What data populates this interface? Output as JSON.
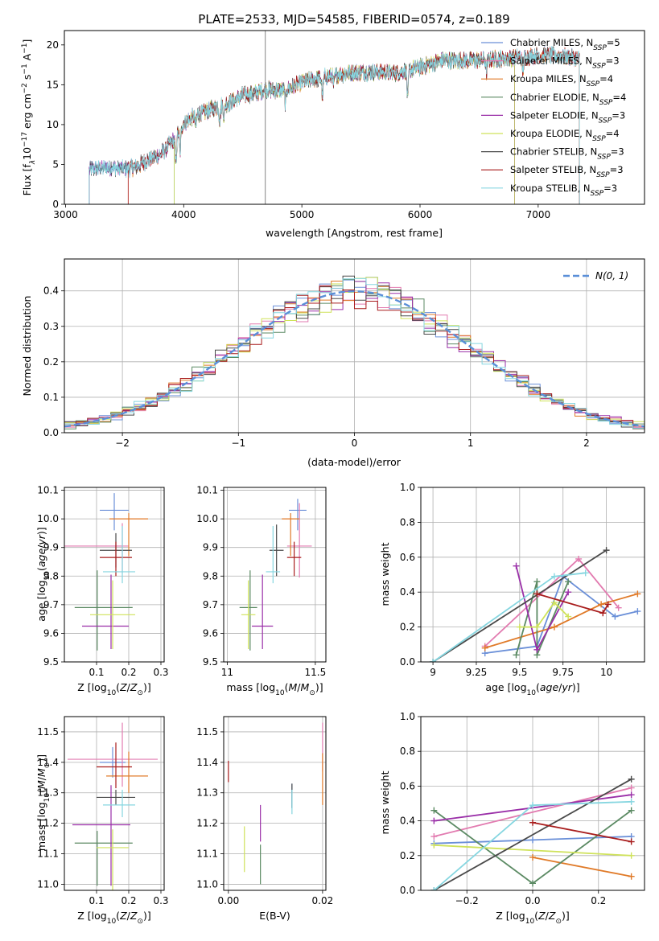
{
  "figure_title": "PLATE=2533, MJD=54585, FIBERID=0574, z=0.189",
  "colors": {
    "Chabrier MILES": "#6a8fd8",
    "Salpeter MILES": "#e27bb0",
    "Kroupa MILES": "#e07a28",
    "Chabrier ELODIE": "#5b8a63",
    "Salpeter ELODIE": "#9a2fa8",
    "Kroupa ELODIE": "#cfe25a",
    "Chabrier STELIB": "#4a4a4a",
    "Salpeter STELIB": "#a81c1c",
    "Kroupa STELIB": "#86d6e0",
    "normal": "#5a8fd8",
    "grid": "#b0b0b0"
  },
  "chart_data": [
    {
      "id": "spectrum",
      "type": "line",
      "title": "",
      "xlabel": "wavelength [Angstrom, rest frame]",
      "ylabel_parts": [
        "Flux [f",
        "λ",
        "10",
        "−17",
        " erg cm",
        "−2",
        " s",
        "−1",
        " A",
        "−1",
        "]"
      ],
      "xlim": [
        2990,
        7900
      ],
      "ylim": [
        0,
        21.8
      ],
      "xticks": [
        3000,
        4000,
        5000,
        6000,
        7000
      ],
      "yticks": [
        0,
        5,
        10,
        15,
        20
      ],
      "grid": false,
      "legend_placement": "right",
      "series": [
        {
          "name": "Chabrier MILES",
          "nssp": "5"
        },
        {
          "name": "Salpeter MILES",
          "nssp": "3"
        },
        {
          "name": "Kroupa MILES",
          "nssp": "4"
        },
        {
          "name": "Chabrier ELODIE",
          "nssp": "4"
        },
        {
          "name": "Salpeter ELODIE",
          "nssp": "3"
        },
        {
          "name": "Kroupa ELODIE",
          "nssp": "4"
        },
        {
          "name": "Chabrier STELIB",
          "nssp": "3"
        },
        {
          "name": "Salpeter STELIB",
          "nssp": "3"
        },
        {
          "name": "Kroupa STELIB",
          "nssp": "3"
        }
      ],
      "continuum": {
        "x": [
          3200,
          3300,
          3400,
          3500,
          3600,
          3700,
          3800,
          3900,
          4000,
          4100,
          4200,
          4300,
          4400,
          4500,
          4600,
          4700,
          4800,
          4900,
          5000,
          5200,
          5400,
          5600,
          5800,
          6000,
          6200,
          6400,
          6600,
          6800,
          7000,
          7200,
          7400
        ],
        "y": [
          4.4,
          4.5,
          4.7,
          4.4,
          4.7,
          5.6,
          6.2,
          7.8,
          10.2,
          11.2,
          11.7,
          12.4,
          12.8,
          13.7,
          13.9,
          14.4,
          14.3,
          14.6,
          15.3,
          16.0,
          16.5,
          16.6,
          16.5,
          17.2,
          18.1,
          18.0,
          18.2,
          18.4,
          18.7,
          18.6,
          18.1
        ]
      },
      "fit_start": [
        3200,
        3530,
        3530,
        3920,
        3200,
        3920,
        3200,
        3530,
        3200
      ],
      "fit_end": [
        7350,
        7350,
        7350,
        6800,
        6800,
        6800,
        7350,
        7350,
        7350
      ],
      "vertical_line_x": 4690
    },
    {
      "id": "residuals",
      "type": "histogram",
      "title": "",
      "xlabel": "(data-model)/error",
      "ylabel": "Normed distribution",
      "xlim": [
        -2.5,
        2.5
      ],
      "ylim": [
        0,
        0.49
      ],
      "xticks": [
        -2,
        -1,
        0,
        1,
        2
      ],
      "xtick_labels": [
        "−2",
        "−1",
        "0",
        "1",
        "2"
      ],
      "yticks": [
        0.0,
        0.1,
        0.2,
        0.3,
        0.4
      ],
      "grid": true,
      "legend_placement": "top-right",
      "legend_label": "N(0, 1)",
      "bin_width": 0.1
    },
    {
      "id": "age-vs-z",
      "type": "scatter",
      "title": "",
      "xlabel": "Z [log10(Z/Z⊙)]",
      "ylabel": "age [log10(age/yr)]",
      "xlim": [
        0.0,
        0.31
      ],
      "ylim": [
        9.5,
        10.11
      ],
      "xticks": [
        0.1,
        0.2,
        0.3
      ],
      "yticks": [
        9.5,
        9.6,
        9.7,
        9.8,
        9.9,
        10.0,
        10.1
      ],
      "grid": true,
      "points": [
        {
          "model": "Chabrier MILES",
          "x": 0.155,
          "xerr": [
            0.045,
            0.045
          ],
          "y": 10.03,
          "yerr": [
            0.07,
            0.06
          ]
        },
        {
          "model": "Salpeter MILES",
          "x": 0.18,
          "xerr": [
            0.2,
            0.02
          ],
          "y": 9.905,
          "yerr": [
            0.095,
            0.08
          ]
        },
        {
          "model": "Kroupa MILES",
          "x": 0.2,
          "xerr": [
            0.06,
            0.06
          ],
          "y": 10.0,
          "yerr": [
            0.13,
            0.02
          ]
        },
        {
          "model": "Chabrier ELODIE",
          "x": 0.102,
          "xerr": [
            0.07,
            0.11
          ],
          "y": 9.69,
          "yerr": [
            0.15,
            0.13
          ]
        },
        {
          "model": "Salpeter ELODIE",
          "x": 0.145,
          "xerr": [
            0.09,
            0.055
          ],
          "y": 9.625,
          "yerr": [
            0.08,
            0.18
          ]
        },
        {
          "model": "Kroupa ELODIE",
          "x": 0.15,
          "xerr": [
            0.07,
            0.07
          ],
          "y": 9.665,
          "yerr": [
            0.12,
            0.12
          ]
        },
        {
          "model": "Chabrier STELIB",
          "x": 0.16,
          "xerr": [
            0.05,
            0.05
          ],
          "y": 9.89,
          "yerr": [
            0.06,
            0.06
          ]
        },
        {
          "model": "Salpeter STELIB",
          "x": 0.16,
          "xerr": [
            0.05,
            0.05
          ],
          "y": 9.865,
          "yerr": [
            0.065,
            0.055
          ]
        },
        {
          "model": "Kroupa STELIB",
          "x": 0.18,
          "xerr": [
            0.06,
            0.04
          ],
          "y": 9.815,
          "yerr": [
            0.04,
            0.16
          ]
        }
      ]
    },
    {
      "id": "age-vs-mass",
      "type": "scatter",
      "title": "",
      "xlabel": "mass [log10(M/M⊙)]",
      "ylabel": "",
      "xlim": [
        10.98,
        11.56
      ],
      "ylim": [
        9.5,
        10.11
      ],
      "xticks": [
        11.0,
        11.5
      ],
      "yticks": [
        9.5,
        9.6,
        9.7,
        9.8,
        9.9,
        10.0,
        10.1
      ],
      "grid": true,
      "points": [
        {
          "model": "Chabrier MILES",
          "x": 11.4,
          "xerr": [
            0.05,
            0.05
          ],
          "y": 10.03,
          "yerr": [
            0.07,
            0.04
          ]
        },
        {
          "model": "Salpeter MILES",
          "x": 11.41,
          "xerr": [
            0.07,
            0.07
          ],
          "y": 9.905,
          "yerr": [
            0.11,
            0.15
          ]
        },
        {
          "model": "Kroupa MILES",
          "x": 11.36,
          "xerr": [
            0.05,
            0.05
          ],
          "y": 10.0,
          "yerr": [
            0.13,
            0.02
          ]
        },
        {
          "model": "Chabrier ELODIE",
          "x": 11.13,
          "xerr": [
            0.06,
            0.04
          ],
          "y": 9.69,
          "yerr": [
            0.15,
            0.13
          ]
        },
        {
          "model": "Salpeter ELODIE",
          "x": 11.2,
          "xerr": [
            0.06,
            0.06
          ],
          "y": 9.625,
          "yerr": [
            0.08,
            0.18
          ]
        },
        {
          "model": "Kroupa ELODIE",
          "x": 11.12,
          "xerr": [
            0.04,
            0.04
          ],
          "y": 9.665,
          "yerr": [
            0.12,
            0.12
          ]
        },
        {
          "model": "Chabrier STELIB",
          "x": 11.28,
          "xerr": [
            0.04,
            0.04
          ],
          "y": 9.89,
          "yerr": [
            0.09,
            0.09
          ]
        },
        {
          "model": "Salpeter STELIB",
          "x": 11.38,
          "xerr": [
            0.04,
            0.04
          ],
          "y": 9.865,
          "yerr": [
            0.065,
            0.055
          ]
        },
        {
          "model": "Kroupa STELIB",
          "x": 11.26,
          "xerr": [
            0.04,
            0.04
          ],
          "y": 9.815,
          "yerr": [
            0.04,
            0.16
          ]
        }
      ]
    },
    {
      "id": "weight-vs-age",
      "type": "line",
      "title": "",
      "xlabel": "age [log10(age/yr)]",
      "ylabel": "mass weight",
      "xlim": [
        8.93,
        10.22
      ],
      "ylim": [
        0,
        1.0
      ],
      "xticks": [
        9.0,
        9.25,
        9.5,
        9.75,
        10.0
      ],
      "yticks": [
        0.0,
        0.2,
        0.4,
        0.6,
        0.8,
        1.0
      ],
      "grid": true,
      "series": [
        {
          "model": "Chabrier MILES",
          "x": [
            9.3,
            9.6,
            9.75,
            10.05,
            10.18
          ],
          "y": [
            0.05,
            0.09,
            0.49,
            0.26,
            0.29
          ]
        },
        {
          "model": "Salpeter MILES",
          "x": [
            9.3,
            9.84,
            10.07
          ],
          "y": [
            0.09,
            0.59,
            0.31
          ]
        },
        {
          "model": "Kroupa MILES",
          "x": [
            9.3,
            9.7,
            9.97,
            10.18
          ],
          "y": [
            0.08,
            0.2,
            0.33,
            0.39
          ]
        },
        {
          "model": "Chabrier ELODIE",
          "x": [
            9.48,
            9.6,
            9.6,
            9.78
          ],
          "y": [
            0.04,
            0.46,
            0.04,
            0.46
          ]
        },
        {
          "model": "Salpeter ELODIE",
          "x": [
            9.48,
            9.6,
            9.78
          ],
          "y": [
            0.55,
            0.07,
            0.4
          ]
        },
        {
          "model": "Kroupa ELODIE",
          "x": [
            9.5,
            9.6,
            9.7,
            9.78
          ],
          "y": [
            0.2,
            0.2,
            0.34,
            0.26
          ]
        },
        {
          "model": "Chabrier STELIB",
          "x": [
            9.0,
            10.0
          ],
          "y": [
            0.0,
            0.64
          ]
        },
        {
          "model": "Salpeter STELIB",
          "x": [
            9.6,
            9.98,
            10.01
          ],
          "y": [
            0.39,
            0.28,
            0.33
          ]
        },
        {
          "model": "Kroupa STELIB",
          "x": [
            9.0,
            9.7,
            9.88
          ],
          "y": [
            0.0,
            0.49,
            0.51
          ]
        }
      ]
    },
    {
      "id": "mass-vs-z",
      "type": "scatter",
      "title": "",
      "xlabel": "Z [log10(Z/Z⊙)]",
      "ylabel": "mass [log10(M/M⊙)]",
      "xlim": [
        0.0,
        0.31
      ],
      "ylim": [
        10.98,
        11.55
      ],
      "xticks": [
        0.1,
        0.2,
        0.3
      ],
      "yticks": [
        11.0,
        11.1,
        11.2,
        11.3,
        11.4,
        11.5
      ],
      "grid": true,
      "points": [
        {
          "model": "Chabrier MILES",
          "x": 0.15,
          "xerr": [
            0.04,
            0.04
          ],
          "y": 11.4,
          "yerr": [
            0.05,
            0.05
          ]
        },
        {
          "model": "Salpeter MILES",
          "x": 0.18,
          "xerr": [
            0.17,
            0.11
          ],
          "y": 11.41,
          "yerr": [
            0.09,
            0.12
          ]
        },
        {
          "model": "Kroupa MILES",
          "x": 0.2,
          "xerr": [
            0.07,
            0.06
          ],
          "y": 11.355,
          "yerr": [
            0.055,
            0.08
          ]
        },
        {
          "model": "Chabrier ELODIE",
          "x": 0.102,
          "xerr": [
            0.07,
            0.11
          ],
          "y": 11.135,
          "yerr": [
            0.14,
            0.04
          ]
        },
        {
          "model": "Salpeter ELODIE",
          "x": 0.145,
          "xerr": [
            0.12,
            0.06
          ],
          "y": 11.195,
          "yerr": [
            0.2,
            0.13
          ]
        },
        {
          "model": "Kroupa ELODIE",
          "x": 0.15,
          "xerr": [
            0.05,
            0.05
          ],
          "y": 11.12,
          "yerr": [
            0.14,
            0.06
          ]
        },
        {
          "model": "Chabrier STELIB",
          "x": 0.16,
          "xerr": [
            0.06,
            0.06
          ],
          "y": 11.285,
          "yerr": [
            0.025,
            0.025
          ]
        },
        {
          "model": "Salpeter STELIB",
          "x": 0.16,
          "xerr": [
            0.06,
            0.05
          ],
          "y": 11.385,
          "yerr": [
            0.07,
            0.08
          ]
        },
        {
          "model": "Kroupa STELIB",
          "x": 0.18,
          "xerr": [
            0.06,
            0.04
          ],
          "y": 11.26,
          "yerr": [
            0.04,
            0.05
          ]
        }
      ]
    },
    {
      "id": "mass-vs-ebv",
      "type": "scatter",
      "title": "",
      "xlabel": "E(B-V)",
      "ylabel": "",
      "xlim": [
        -0.001,
        0.0207
      ],
      "ylim": [
        10.98,
        11.55
      ],
      "xticks": [
        0.0,
        0.02
      ],
      "xtick_labels": [
        "0.00",
        "0.02"
      ],
      "yticks": [
        11.0,
        11.1,
        11.2,
        11.3,
        11.4,
        11.5
      ],
      "grid": true,
      "points": [
        {
          "model": "Chabrier MILES",
          "x": 0.0135,
          "xerr": [
            0,
            0
          ],
          "y": 11.29,
          "yerr": [
            0.04,
            0.04
          ]
        },
        {
          "model": "Salpeter MILES",
          "x": 0.02,
          "xerr": [
            0,
            0
          ],
          "y": 11.45,
          "yerr": [
            0.08,
            0.08
          ]
        },
        {
          "model": "Kroupa MILES",
          "x": 0.02,
          "xerr": [
            0,
            0
          ],
          "y": 11.36,
          "yerr": [
            0.1,
            0.07
          ]
        },
        {
          "model": "Chabrier ELODIE",
          "x": 0.0068,
          "xerr": [
            0,
            0
          ],
          "y": 11.07,
          "yerr": [
            0.07,
            0.06
          ]
        },
        {
          "model": "Salpeter ELODIE",
          "x": 0.0068,
          "xerr": [
            0,
            0
          ],
          "y": 11.2,
          "yerr": [
            0.06,
            0.06
          ]
        },
        {
          "model": "Kroupa ELODIE",
          "x": 0.0034,
          "xerr": [
            0,
            0
          ],
          "y": 11.12,
          "yerr": [
            0.08,
            0.07
          ]
        },
        {
          "model": "Chabrier STELIB",
          "x": 0.0135,
          "xerr": [
            0,
            0
          ],
          "y": 11.29,
          "yerr": [
            0.04,
            0.04
          ]
        },
        {
          "model": "Salpeter STELIB",
          "x": 0.0,
          "xerr": [
            0,
            0
          ],
          "y": 11.37,
          "yerr": [
            0.035,
            0.035
          ]
        },
        {
          "model": "Kroupa STELIB",
          "x": 0.0135,
          "xerr": [
            0,
            0
          ],
          "y": 11.27,
          "yerr": [
            0.04,
            0.04
          ]
        }
      ]
    },
    {
      "id": "weight-vs-z",
      "type": "line",
      "title": "",
      "xlabel": "Z [log10(Z/Z⊙)]",
      "ylabel": "mass weight",
      "xlim": [
        -0.34,
        0.34
      ],
      "ylim": [
        0,
        1.0
      ],
      "xticks": [
        -0.2,
        0.0,
        0.2
      ],
      "xtick_labels": [
        "−0.2",
        "0.0",
        "0.2"
      ],
      "yticks": [
        0.0,
        0.2,
        0.4,
        0.6,
        0.8,
        1.0
      ],
      "grid": true,
      "series": [
        {
          "model": "Chabrier MILES",
          "x": [
            -0.3,
            0.0,
            0.3
          ],
          "y": [
            0.27,
            0.29,
            0.31
          ]
        },
        {
          "model": "Salpeter MILES",
          "x": [
            -0.3,
            0.3
          ],
          "y": [
            0.31,
            0.59
          ]
        },
        {
          "model": "Kroupa MILES",
          "x": [
            0.0,
            0.3
          ],
          "y": [
            0.19,
            0.08
          ]
        },
        {
          "model": "Chabrier ELODIE",
          "x": [
            -0.3,
            0.0,
            0.3
          ],
          "y": [
            0.46,
            0.04,
            0.46
          ]
        },
        {
          "model": "Salpeter ELODIE",
          "x": [
            -0.3,
            0.3
          ],
          "y": [
            0.4,
            0.55
          ]
        },
        {
          "model": "Kroupa ELODIE",
          "x": [
            -0.3,
            0.3
          ],
          "y": [
            0.26,
            0.2
          ]
        },
        {
          "model": "Chabrier STELIB",
          "x": [
            -0.3,
            0.3
          ],
          "y": [
            0.0,
            0.64
          ]
        },
        {
          "model": "Salpeter STELIB",
          "x": [
            0.0,
            0.3
          ],
          "y": [
            0.39,
            0.28
          ]
        },
        {
          "model": "Kroupa STELIB",
          "x": [
            -0.3,
            0.0,
            0.3
          ],
          "y": [
            0.0,
            0.49,
            0.51
          ]
        }
      ]
    }
  ]
}
